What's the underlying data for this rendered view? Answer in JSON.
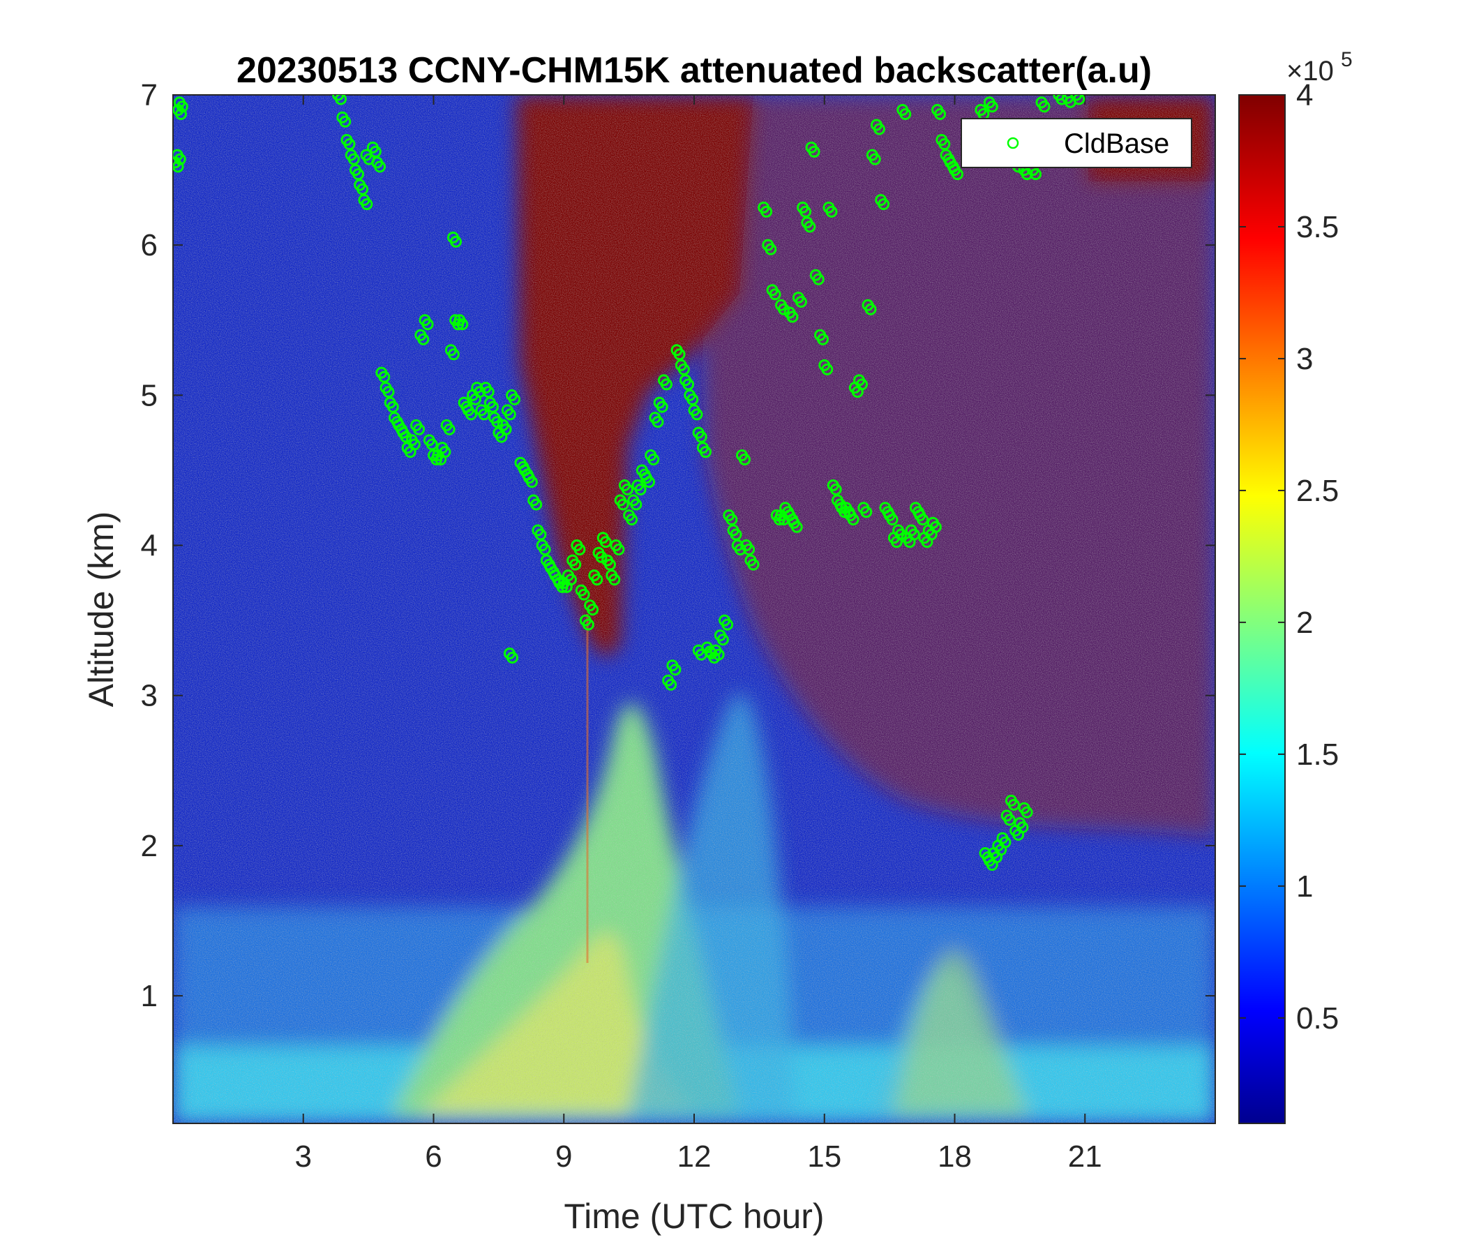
{
  "chart_data": {
    "type": "heatmap",
    "title": "20230513 CCNY-CHM15K attenuated backscatter(a.u)",
    "xlabel": "Time (UTC hour)",
    "ylabel": "Altitude (km)",
    "xlim": [
      0,
      24
    ],
    "ylim": [
      0.15,
      7
    ],
    "xticks": [
      3,
      6,
      9,
      12,
      15,
      18,
      21
    ],
    "yticks": [
      1,
      2,
      3,
      4,
      5,
      6,
      7
    ],
    "colorbar": {
      "range": [
        0.1,
        4
      ],
      "ticks": [
        0.5,
        1,
        1.5,
        2,
        2.5,
        3,
        3.5,
        4
      ],
      "multiplier": "×10",
      "exponent": "5",
      "colormap": "jet"
    },
    "legend": {
      "label": "CldBase",
      "position": "top-right",
      "marker_color": "#00ff00"
    },
    "series": [
      {
        "name": "CldBase",
        "marker": "circle",
        "color": "#00ff00",
        "points": [
          [
            0.05,
            6.55
          ],
          [
            0.1,
            6.6
          ],
          [
            0.12,
            6.9
          ],
          [
            0.15,
            6.95
          ],
          [
            3.8,
            7.0
          ],
          [
            3.9,
            6.85
          ],
          [
            4.0,
            6.7
          ],
          [
            4.1,
            6.6
          ],
          [
            4.2,
            6.5
          ],
          [
            4.3,
            6.4
          ],
          [
            4.4,
            6.3
          ],
          [
            4.45,
            6.6
          ],
          [
            4.6,
            6.65
          ],
          [
            4.7,
            6.55
          ],
          [
            4.8,
            5.15
          ],
          [
            4.9,
            5.05
          ],
          [
            5.0,
            4.95
          ],
          [
            5.1,
            4.85
          ],
          [
            5.2,
            4.8
          ],
          [
            5.3,
            4.75
          ],
          [
            5.4,
            4.65
          ],
          [
            5.5,
            4.7
          ],
          [
            5.6,
            4.8
          ],
          [
            5.7,
            5.4
          ],
          [
            5.8,
            5.5
          ],
          [
            5.9,
            4.7
          ],
          [
            6.0,
            4.6
          ],
          [
            6.1,
            4.6
          ],
          [
            6.2,
            4.65
          ],
          [
            6.3,
            4.8
          ],
          [
            6.4,
            5.3
          ],
          [
            6.45,
            6.05
          ],
          [
            6.5,
            5.5
          ],
          [
            6.6,
            5.5
          ],
          [
            6.7,
            4.95
          ],
          [
            6.8,
            4.9
          ],
          [
            6.9,
            5.0
          ],
          [
            7.0,
            5.05
          ],
          [
            7.1,
            4.9
          ],
          [
            7.2,
            5.05
          ],
          [
            7.3,
            4.95
          ],
          [
            7.4,
            4.85
          ],
          [
            7.5,
            4.75
          ],
          [
            7.6,
            4.8
          ],
          [
            7.7,
            4.9
          ],
          [
            7.8,
            5.0
          ],
          [
            7.75,
            3.28
          ],
          [
            8.0,
            4.55
          ],
          [
            8.1,
            4.5
          ],
          [
            8.2,
            4.45
          ],
          [
            8.3,
            4.3
          ],
          [
            8.4,
            4.1
          ],
          [
            8.5,
            4.0
          ],
          [
            8.6,
            3.9
          ],
          [
            8.7,
            3.85
          ],
          [
            8.8,
            3.8
          ],
          [
            8.9,
            3.75
          ],
          [
            9.0,
            3.75
          ],
          [
            9.1,
            3.8
          ],
          [
            9.2,
            3.9
          ],
          [
            9.3,
            4.0
          ],
          [
            9.4,
            3.7
          ],
          [
            9.5,
            3.5
          ],
          [
            9.6,
            3.6
          ],
          [
            9.7,
            3.8
          ],
          [
            9.8,
            3.95
          ],
          [
            9.9,
            4.05
          ],
          [
            10.0,
            3.9
          ],
          [
            10.1,
            3.8
          ],
          [
            10.2,
            4.0
          ],
          [
            10.3,
            4.3
          ],
          [
            10.4,
            4.4
          ],
          [
            10.5,
            4.2
          ],
          [
            10.6,
            4.3
          ],
          [
            10.7,
            4.4
          ],
          [
            10.8,
            4.5
          ],
          [
            10.9,
            4.45
          ],
          [
            11.0,
            4.6
          ],
          [
            11.1,
            4.85
          ],
          [
            11.2,
            4.95
          ],
          [
            11.3,
            5.1
          ],
          [
            11.4,
            3.1
          ],
          [
            11.5,
            3.2
          ],
          [
            11.6,
            5.3
          ],
          [
            11.7,
            5.2
          ],
          [
            11.8,
            5.1
          ],
          [
            11.9,
            5.0
          ],
          [
            12.0,
            4.9
          ],
          [
            12.1,
            4.75
          ],
          [
            12.2,
            4.65
          ],
          [
            12.1,
            3.3
          ],
          [
            12.3,
            3.32
          ],
          [
            12.4,
            3.28
          ],
          [
            12.5,
            3.3
          ],
          [
            12.6,
            3.4
          ],
          [
            12.7,
            3.5
          ],
          [
            12.8,
            4.2
          ],
          [
            12.9,
            4.1
          ],
          [
            13.0,
            4.0
          ],
          [
            13.1,
            4.6
          ],
          [
            13.2,
            4.0
          ],
          [
            13.3,
            3.9
          ],
          [
            13.6,
            6.25
          ],
          [
            13.7,
            6.0
          ],
          [
            13.8,
            5.7
          ],
          [
            13.9,
            4.2
          ],
          [
            14.0,
            4.2
          ],
          [
            14.1,
            4.25
          ],
          [
            14.2,
            4.2
          ],
          [
            14.3,
            4.15
          ],
          [
            14.0,
            5.6
          ],
          [
            14.2,
            5.55
          ],
          [
            14.4,
            5.65
          ],
          [
            14.5,
            6.25
          ],
          [
            14.6,
            6.15
          ],
          [
            14.7,
            6.65
          ],
          [
            14.8,
            5.8
          ],
          [
            14.9,
            5.4
          ],
          [
            15.0,
            5.2
          ],
          [
            15.1,
            6.25
          ],
          [
            15.2,
            4.4
          ],
          [
            15.3,
            4.3
          ],
          [
            15.4,
            4.25
          ],
          [
            15.5,
            4.25
          ],
          [
            15.6,
            4.2
          ],
          [
            15.7,
            5.05
          ],
          [
            15.8,
            5.1
          ],
          [
            15.9,
            4.25
          ],
          [
            16.0,
            5.6
          ],
          [
            16.1,
            6.6
          ],
          [
            16.2,
            6.8
          ],
          [
            16.3,
            6.3
          ],
          [
            16.4,
            4.25
          ],
          [
            16.5,
            4.2
          ],
          [
            16.6,
            4.05
          ],
          [
            16.7,
            4.1
          ],
          [
            16.8,
            6.9
          ],
          [
            16.9,
            4.05
          ],
          [
            17.0,
            4.1
          ],
          [
            17.1,
            4.25
          ],
          [
            17.2,
            4.2
          ],
          [
            17.3,
            4.05
          ],
          [
            17.4,
            4.1
          ],
          [
            17.5,
            4.15
          ],
          [
            17.6,
            6.9
          ],
          [
            17.7,
            6.7
          ],
          [
            17.8,
            6.6
          ],
          [
            17.9,
            6.55
          ],
          [
            18.0,
            6.5
          ],
          [
            18.7,
            1.95
          ],
          [
            18.8,
            1.9
          ],
          [
            18.9,
            1.95
          ],
          [
            19.0,
            2.0
          ],
          [
            19.1,
            2.05
          ],
          [
            19.2,
            2.2
          ],
          [
            19.3,
            2.3
          ],
          [
            19.4,
            2.1
          ],
          [
            19.5,
            2.15
          ],
          [
            19.6,
            2.25
          ],
          [
            18.6,
            6.9
          ],
          [
            18.8,
            6.95
          ],
          [
            19.0,
            6.8
          ],
          [
            19.2,
            6.6
          ],
          [
            19.4,
            6.55
          ],
          [
            19.6,
            6.5
          ],
          [
            19.8,
            6.5
          ],
          [
            20.0,
            6.95
          ],
          [
            20.4,
            7.0
          ],
          [
            20.6,
            6.98
          ],
          [
            20.8,
            7.0
          ]
        ]
      }
    ]
  }
}
